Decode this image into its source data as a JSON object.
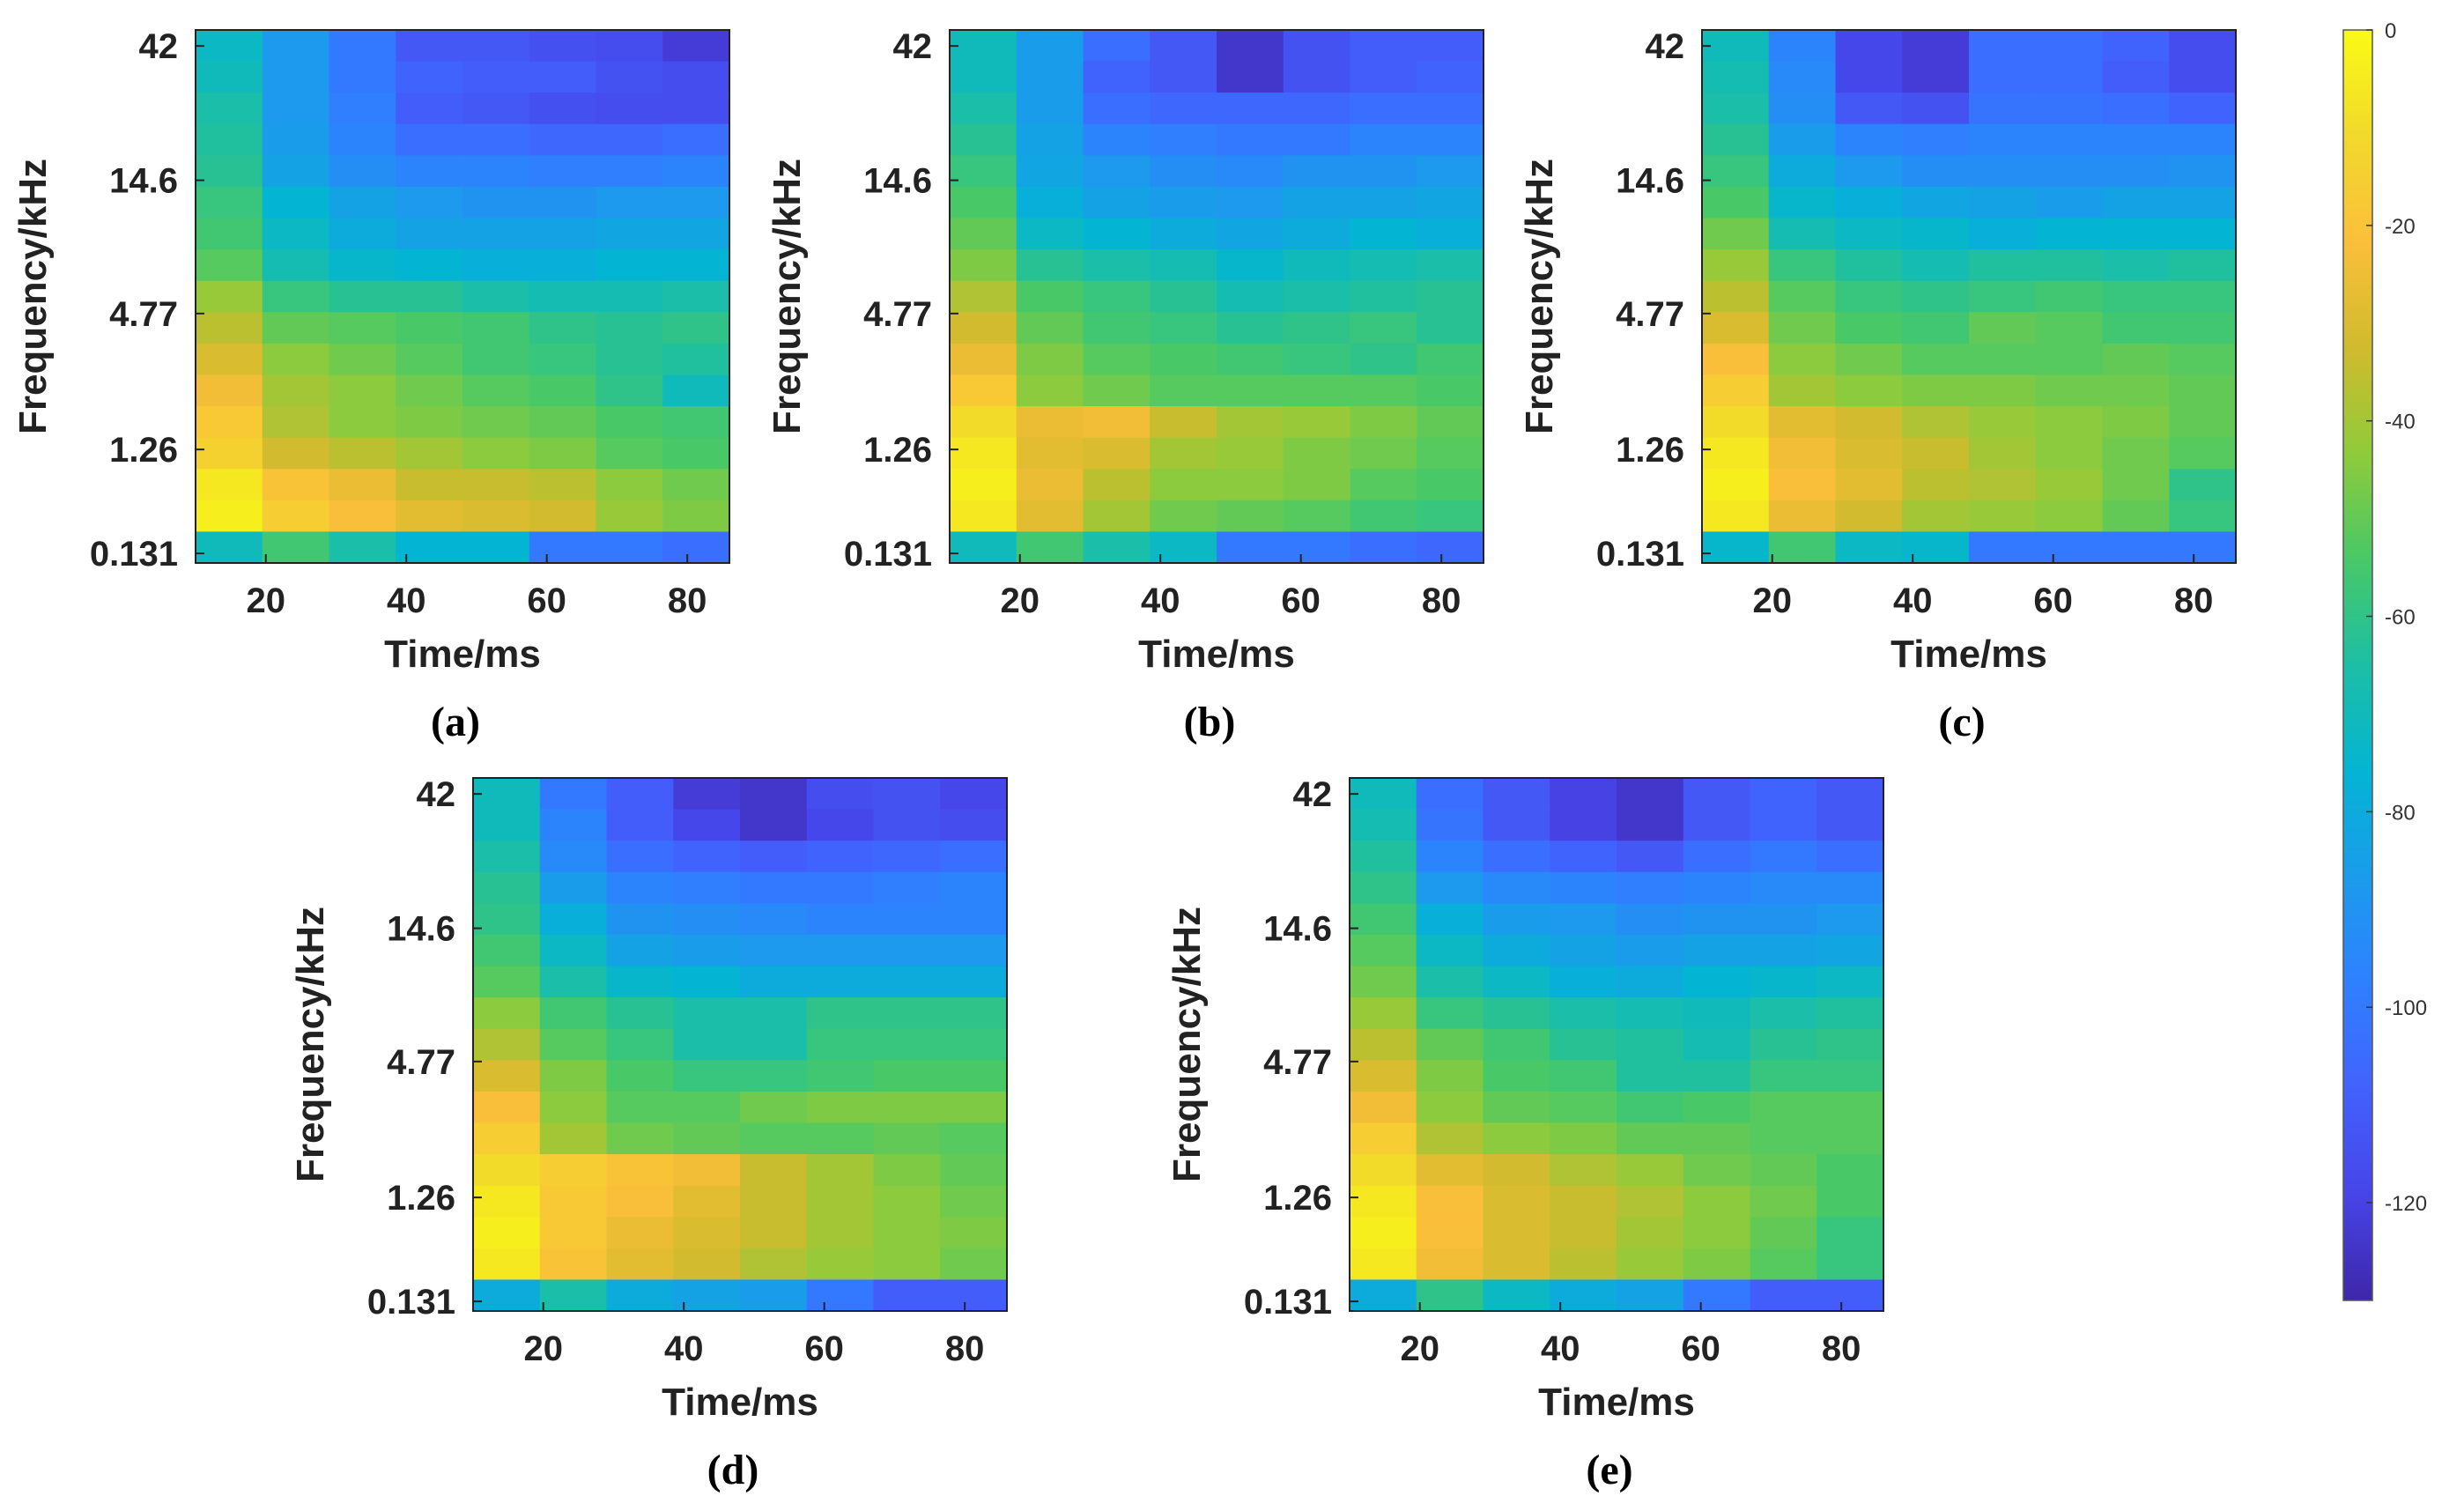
{
  "colors": {
    "colormap": [
      "#3e26a8",
      "#4744e8",
      "#4262fd",
      "#2f80ff",
      "#1a9ceb",
      "#04b4d3",
      "#1cbfa5",
      "#48c868",
      "#8fcb3a",
      "#d0bb2d",
      "#fbbf3a",
      "#f1d92b",
      "#f9fb15"
    ],
    "axis": "#222222",
    "background": "#ffffff"
  },
  "chart_data": [
    {
      "panel": "a",
      "type": "heatmap",
      "caption": "(a)",
      "xlabel": "Time/ms",
      "ylabel": "Frequency/kHz",
      "x_ticks": [
        "20",
        "40",
        "60",
        "80"
      ],
      "y_ticks": [
        "0.131",
        "1.26",
        "4.77",
        "14.6",
        "42"
      ],
      "x_centers_ms": [
        15,
        25,
        35,
        45,
        55,
        65,
        75,
        85
      ],
      "rows": 17,
      "row_order": "top-to-bottom (42 kHz first)",
      "values_db": [
        [
          -72,
          -88,
          -100,
          -112,
          -112,
          -115,
          -116,
          -122
        ],
        [
          -70,
          -88,
          -100,
          -108,
          -110,
          -110,
          -114,
          -116
        ],
        [
          -66,
          -88,
          -98,
          -110,
          -112,
          -115,
          -116,
          -116
        ],
        [
          -64,
          -86,
          -96,
          -104,
          -104,
          -106,
          -106,
          -104
        ],
        [
          -62,
          -84,
          -92,
          -96,
          -96,
          -98,
          -98,
          -96
        ],
        [
          -58,
          -76,
          -84,
          -88,
          -90,
          -90,
          -88,
          -88
        ],
        [
          -56,
          -72,
          -80,
          -84,
          -84,
          -84,
          -82,
          -82
        ],
        [
          -52,
          -68,
          -74,
          -76,
          -78,
          -78,
          -76,
          -76
        ],
        [
          -42,
          -58,
          -62,
          -62,
          -66,
          -68,
          -68,
          -66
        ],
        [
          -36,
          -50,
          -52,
          -54,
          -56,
          -60,
          -62,
          -60
        ],
        [
          -30,
          -44,
          -48,
          -52,
          -56,
          -58,
          -62,
          -64
        ],
        [
          -24,
          -40,
          -44,
          -48,
          -52,
          -54,
          -60,
          -70
        ],
        [
          -18,
          -38,
          -44,
          -46,
          -48,
          -50,
          -54,
          -56
        ],
        [
          -14,
          -32,
          -36,
          -40,
          -44,
          -46,
          -52,
          -54
        ],
        [
          -6,
          -20,
          -26,
          -34,
          -34,
          -36,
          -44,
          -48
        ],
        [
          -4,
          -16,
          -22,
          -28,
          -30,
          -32,
          -42,
          -46
        ],
        [
          -70,
          -56,
          -66,
          -76,
          -76,
          -100,
          -100,
          -104
        ]
      ]
    },
    {
      "panel": "b",
      "type": "heatmap",
      "caption": "(b)",
      "xlabel": "Time/ms",
      "ylabel": "Frequency/kHz",
      "x_ticks": [
        "20",
        "40",
        "60",
        "80"
      ],
      "y_ticks": [
        "0.131",
        "1.26",
        "4.77",
        "14.6",
        "42"
      ],
      "x_centers_ms": [
        15,
        25,
        35,
        45,
        55,
        65,
        75,
        85
      ],
      "rows": 17,
      "row_order": "top-to-bottom (42 kHz first)",
      "values_db": [
        [
          -70,
          -86,
          -104,
          -112,
          -124,
          -114,
          -110,
          -110
        ],
        [
          -70,
          -86,
          -108,
          -112,
          -124,
          -114,
          -110,
          -108
        ],
        [
          -66,
          -86,
          -104,
          -106,
          -106,
          -106,
          -104,
          -104
        ],
        [
          -62,
          -84,
          -96,
          -98,
          -100,
          -100,
          -96,
          -96
        ],
        [
          -58,
          -82,
          -88,
          -92,
          -94,
          -90,
          -90,
          -88
        ],
        [
          -54,
          -78,
          -84,
          -86,
          -88,
          -84,
          -84,
          -82
        ],
        [
          -50,
          -72,
          -76,
          -80,
          -82,
          -80,
          -76,
          -78
        ],
        [
          -46,
          -62,
          -66,
          -68,
          -74,
          -70,
          -68,
          -66
        ],
        [
          -38,
          -54,
          -58,
          -62,
          -68,
          -66,
          -64,
          -62
        ],
        [
          -32,
          -50,
          -56,
          -58,
          -62,
          -60,
          -58,
          -62
        ],
        [
          -26,
          -46,
          -52,
          -54,
          -56,
          -58,
          -60,
          -56
        ],
        [
          -18,
          -44,
          -48,
          -52,
          -52,
          -52,
          -52,
          -54
        ],
        [
          -10,
          -26,
          -24,
          -34,
          -40,
          -42,
          -46,
          -50
        ],
        [
          -6,
          -28,
          -30,
          -40,
          -42,
          -46,
          -48,
          -52
        ],
        [
          -4,
          -26,
          -36,
          -44,
          -44,
          -46,
          -52,
          -54
        ],
        [
          -6,
          -28,
          -40,
          -48,
          -50,
          -52,
          -56,
          -58
        ],
        [
          -70,
          -56,
          -66,
          -72,
          -100,
          -100,
          -104,
          -106
        ]
      ]
    },
    {
      "panel": "c",
      "type": "heatmap",
      "caption": "(c)",
      "xlabel": "Time/ms",
      "ylabel": "Frequency/kHz",
      "x_ticks": [
        "20",
        "40",
        "60",
        "80"
      ],
      "y_ticks": [
        "0.131",
        "1.26",
        "4.77",
        "14.6",
        "42"
      ],
      "x_centers_ms": [
        15,
        25,
        35,
        45,
        55,
        65,
        75,
        85
      ],
      "rows": 17,
      "row_order": "top-to-bottom (42 kHz first)",
      "values_db": [
        [
          -70,
          -96,
          -118,
          -122,
          -104,
          -104,
          -108,
          -116
        ],
        [
          -68,
          -94,
          -118,
          -122,
          -104,
          -104,
          -110,
          -116
        ],
        [
          -66,
          -92,
          -112,
          -114,
          -102,
          -102,
          -104,
          -108
        ],
        [
          -62,
          -86,
          -96,
          -98,
          -96,
          -96,
          -96,
          -96
        ],
        [
          -58,
          -80,
          -88,
          -92,
          -92,
          -92,
          -92,
          -90
        ],
        [
          -54,
          -74,
          -78,
          -82,
          -84,
          -86,
          -84,
          -84
        ],
        [
          -48,
          -68,
          -72,
          -74,
          -78,
          -76,
          -76,
          -76
        ],
        [
          -42,
          -58,
          -64,
          -68,
          -64,
          -64,
          -66,
          -64
        ],
        [
          -36,
          -52,
          -58,
          -60,
          -58,
          -56,
          -58,
          -58
        ],
        [
          -30,
          -48,
          -54,
          -56,
          -50,
          -52,
          -56,
          -56
        ],
        [
          -22,
          -44,
          -48,
          -52,
          -52,
          -52,
          -50,
          -52
        ],
        [
          -16,
          -40,
          -44,
          -46,
          -46,
          -48,
          -48,
          -50
        ],
        [
          -10,
          -28,
          -32,
          -38,
          -42,
          -44,
          -46,
          -50
        ],
        [
          -6,
          -24,
          -30,
          -34,
          -40,
          -44,
          -48,
          -52
        ],
        [
          -4,
          -22,
          -28,
          -36,
          -38,
          -42,
          -48,
          -60
        ],
        [
          -6,
          -26,
          -32,
          -40,
          -42,
          -44,
          -50,
          -58
        ],
        [
          -74,
          -56,
          -72,
          -74,
          -100,
          -100,
          -100,
          -100
        ]
      ]
    },
    {
      "panel": "d",
      "type": "heatmap",
      "caption": "(d)",
      "xlabel": "Time/ms",
      "ylabel": "Frequency/kHz",
      "x_ticks": [
        "20",
        "40",
        "60",
        "80"
      ],
      "y_ticks": [
        "0.131",
        "1.26",
        "4.77",
        "14.6",
        "42"
      ],
      "x_centers_ms": [
        15,
        25,
        35,
        45,
        55,
        65,
        75,
        85
      ],
      "rows": 17,
      "row_order": "top-to-bottom (42 kHz first)",
      "values_db": [
        [
          -70,
          -100,
          -110,
          -122,
          -124,
          -116,
          -114,
          -118
        ],
        [
          -70,
          -96,
          -110,
          -118,
          -124,
          -118,
          -114,
          -116
        ],
        [
          -66,
          -94,
          -104,
          -108,
          -110,
          -108,
          -106,
          -104
        ],
        [
          -62,
          -86,
          -96,
          -98,
          -100,
          -100,
          -98,
          -96
        ],
        [
          -60,
          -78,
          -90,
          -92,
          -94,
          -96,
          -96,
          -96
        ],
        [
          -56,
          -72,
          -84,
          -86,
          -88,
          -88,
          -88,
          -88
        ],
        [
          -52,
          -66,
          -74,
          -76,
          -80,
          -80,
          -80,
          -80
        ],
        [
          -44,
          -56,
          -62,
          -66,
          -66,
          -60,
          -60,
          -60
        ],
        [
          -38,
          -52,
          -58,
          -66,
          -66,
          -58,
          -58,
          -58
        ],
        [
          -30,
          -46,
          -54,
          -58,
          -58,
          -56,
          -54,
          -54
        ],
        [
          -22,
          -44,
          -52,
          -52,
          -48,
          -46,
          -46,
          -46
        ],
        [
          -16,
          -40,
          -48,
          -50,
          -52,
          -52,
          -50,
          -52
        ],
        [
          -10,
          -16,
          -20,
          -24,
          -34,
          -40,
          -46,
          -50
        ],
        [
          -6,
          -18,
          -22,
          -28,
          -34,
          -40,
          -44,
          -48
        ],
        [
          -4,
          -18,
          -26,
          -30,
          -34,
          -40,
          -44,
          -46
        ],
        [
          -6,
          -20,
          -28,
          -32,
          -38,
          -42,
          -44,
          -48
        ],
        [
          -80,
          -66,
          -80,
          -84,
          -86,
          -100,
          -110,
          -110
        ]
      ]
    },
    {
      "panel": "e",
      "type": "heatmap",
      "caption": "(e)",
      "xlabel": "Time/ms",
      "ylabel": "Frequency/kHz",
      "x_ticks": [
        "20",
        "40",
        "60",
        "80"
      ],
      "y_ticks": [
        "0.131",
        "1.26",
        "4.77",
        "14.6",
        "42"
      ],
      "x_centers_ms": [
        15,
        25,
        35,
        45,
        55,
        65,
        75,
        85
      ],
      "rows": 17,
      "row_order": "top-to-bottom (42 kHz first)",
      "values_db": [
        [
          -70,
          -104,
          -112,
          -120,
          -124,
          -112,
          -108,
          -112
        ],
        [
          -68,
          -102,
          -112,
          -120,
          -124,
          -112,
          -108,
          -112
        ],
        [
          -64,
          -96,
          -104,
          -108,
          -112,
          -104,
          -100,
          -104
        ],
        [
          -60,
          -88,
          -94,
          -96,
          -98,
          -96,
          -94,
          -94
        ],
        [
          -56,
          -78,
          -86,
          -88,
          -92,
          -90,
          -90,
          -88
        ],
        [
          -52,
          -72,
          -80,
          -84,
          -86,
          -84,
          -84,
          -82
        ],
        [
          -48,
          -66,
          -72,
          -78,
          -80,
          -76,
          -74,
          -72
        ],
        [
          -42,
          -58,
          -62,
          -66,
          -68,
          -70,
          -66,
          -64
        ],
        [
          -36,
          -50,
          -56,
          -62,
          -64,
          -68,
          -62,
          -60
        ],
        [
          -30,
          -46,
          -54,
          -56,
          -64,
          -64,
          -58,
          -58
        ],
        [
          -24,
          -44,
          -50,
          -52,
          -56,
          -54,
          -52,
          -52
        ],
        [
          -16,
          -38,
          -44,
          -46,
          -50,
          -50,
          -52,
          -52
        ],
        [
          -10,
          -28,
          -32,
          -38,
          -42,
          -48,
          -50,
          -54
        ],
        [
          -6,
          -22,
          -30,
          -34,
          -38,
          -44,
          -48,
          -54
        ],
        [
          -4,
          -22,
          -30,
          -34,
          -40,
          -44,
          -50,
          -58
        ],
        [
          -6,
          -24,
          -30,
          -36,
          -42,
          -46,
          -52,
          -58
        ],
        [
          -80,
          -60,
          -72,
          -80,
          -84,
          -100,
          -110,
          -110
        ]
      ]
    },
    {
      "type": "colorbar",
      "range": [
        -130,
        0
      ],
      "ticks": [
        0,
        -20,
        -40,
        -60,
        -80,
        -100,
        -120
      ],
      "tick_labels": [
        "0",
        "-20",
        "-40",
        "-60",
        "-80",
        "-100",
        "-120"
      ],
      "colormap": "parula"
    }
  ]
}
